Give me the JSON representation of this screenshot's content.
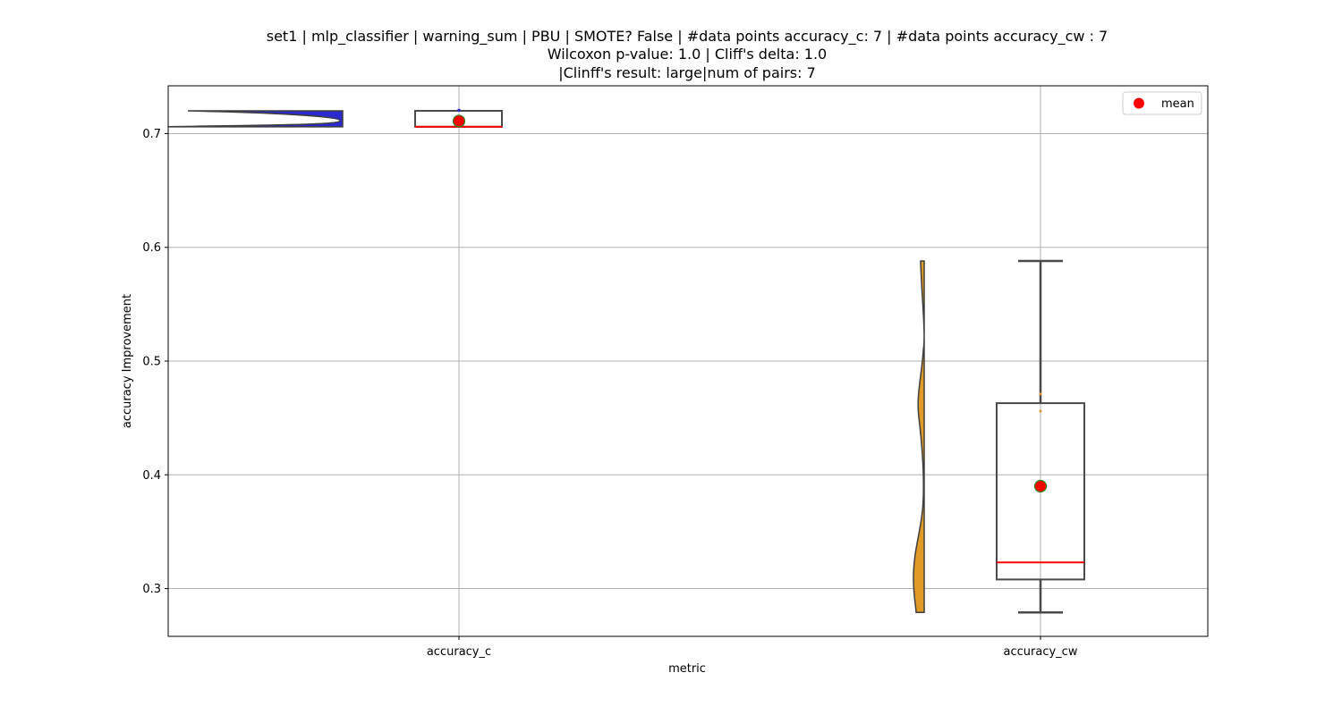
{
  "chart_data": {
    "type": "violin+box",
    "title": [
      "set1 | mlp_classifier | warning_sum | PBU | SMOTE? False | #data points accuracy_c: 7 | #data points accuracy_cw : 7",
      "Wilcoxon p-value: 1.0 | Cliff's delta: 1.0",
      "|Clinff's result: large|num of pairs: 7"
    ],
    "xlabel": "metric",
    "ylabel": "accuracy Improvement",
    "ylim": [
      0.258,
      0.742
    ],
    "yticks": [
      0.3,
      0.4,
      0.5,
      0.6,
      0.7
    ],
    "ytick_labels": [
      "0.3",
      "0.4",
      "0.5",
      "0.6",
      "0.7"
    ],
    "grid": true,
    "legend": {
      "position": "top-right",
      "entries": [
        {
          "label": "mean",
          "color": "#ff0000"
        }
      ]
    },
    "categories": [
      "accuracy_c",
      "accuracy_cw"
    ],
    "series": [
      {
        "category": "accuracy_c",
        "violin_color": "#2a2ad0",
        "violin_range": [
          0.706,
          0.72
        ],
        "box": {
          "whisker_low": 0.706,
          "q1": 0.706,
          "median": 0.706,
          "q3": 0.72,
          "whisker_high": 0.72
        },
        "mean": 0.711
      },
      {
        "category": "accuracy_cw",
        "violin_color": "#e09a25",
        "violin_range": [
          0.279,
          0.588
        ],
        "box": {
          "whisker_low": 0.279,
          "q1": 0.308,
          "median": 0.323,
          "q3": 0.463,
          "whisker_high": 0.588
        },
        "mean": 0.39,
        "points": [
          0.471,
          0.456
        ]
      }
    ]
  }
}
